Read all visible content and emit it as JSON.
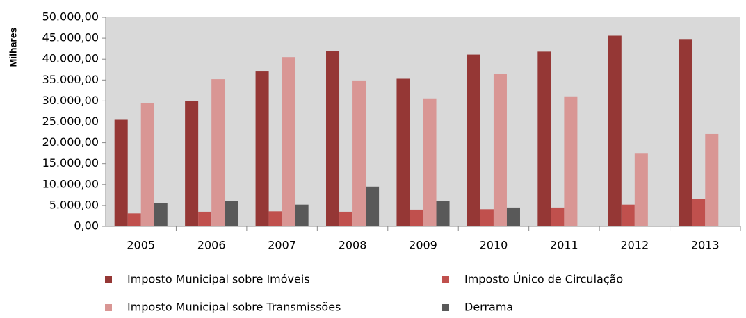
{
  "chart_data": {
    "type": "bar",
    "ylabel": "Milhares",
    "categories": [
      "2005",
      "2006",
      "2007",
      "2008",
      "2009",
      "2010",
      "2011",
      "2012",
      "2013"
    ],
    "series": [
      {
        "name": "Imposto Municipal sobre Imóveis",
        "color": "#953735",
        "values": [
          25500,
          30000,
          37200,
          42000,
          35300,
          41100,
          41800,
          45600,
          44800
        ]
      },
      {
        "name": "Imposto Único de Circulação",
        "color": "#c0504d",
        "values": [
          3100,
          3500,
          3600,
          3500,
          4000,
          4100,
          4500,
          5200,
          6500
        ]
      },
      {
        "name": "Imposto Municipal sobre Transmissões",
        "color": "#d99694",
        "values": [
          29500,
          35200,
          40500,
          34900,
          30600,
          36500,
          31100,
          17400,
          22100
        ]
      },
      {
        "name": "Derrama",
        "color": "#595959",
        "values": [
          5500,
          6000,
          5200,
          9500,
          6000,
          4500,
          null,
          null,
          null
        ]
      }
    ],
    "ylim": [
      0,
      50000
    ],
    "yticks": [
      {
        "value": 0,
        "label": "0,00"
      },
      {
        "value": 5000,
        "label": "5.000,00"
      },
      {
        "value": 10000,
        "label": "10.000,00"
      },
      {
        "value": 15000,
        "label": "15.000,00"
      },
      {
        "value": 20000,
        "label": "20.000,00"
      },
      {
        "value": 25000,
        "label": "25.000,00"
      },
      {
        "value": 30000,
        "label": "30.000,00"
      },
      {
        "value": 35000,
        "label": "35.000,00"
      },
      {
        "value": 40000,
        "label": "40.000,00"
      },
      {
        "value": 45000,
        "label": "45.000,00"
      },
      {
        "value": 50000,
        "label": "50.000,00"
      }
    ],
    "plot_background": "#d9d9d9"
  }
}
